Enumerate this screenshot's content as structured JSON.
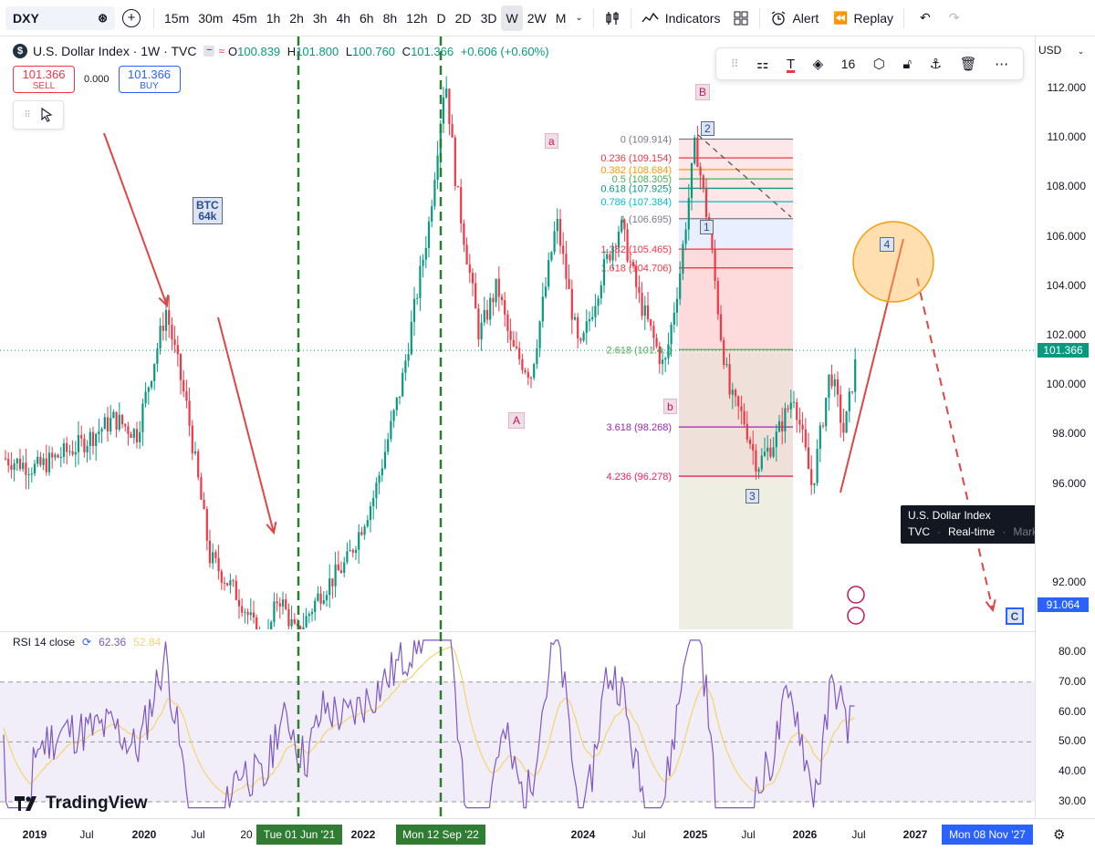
{
  "toolbar": {
    "symbol": "DXY",
    "intervals": [
      "15m",
      "30m",
      "45m",
      "1h",
      "2h",
      "3h",
      "4h",
      "6h",
      "8h",
      "12h",
      "D",
      "2D",
      "3D",
      "W",
      "2W",
      "M"
    ],
    "active_interval": "W",
    "indicators_label": "Indicators",
    "alert_label": "Alert",
    "replay_label": "Replay"
  },
  "legend": {
    "title": "U.S. Dollar Index · 1W · TVC",
    "o": "100.839",
    "h": "101.800",
    "l": "100.760",
    "c": "101.366",
    "chg": "+0.606 (+0.60%)"
  },
  "trade": {
    "sell_price": "101.366",
    "sell_label": "SELL",
    "spread": "0.000",
    "buy_price": "101.366",
    "buy_label": "BUY"
  },
  "draw_toolbar": {
    "font_size": "16"
  },
  "price_scale": {
    "currency": "USD",
    "labels": [
      "112.000",
      "110.000",
      "108.000",
      "106.000",
      "104.000",
      "102.000",
      "100.000",
      "98.000",
      "96.000",
      "92.000"
    ],
    "current": "101.366",
    "target": "91.064",
    "rsi_labels": [
      "80.00",
      "70.00",
      "60.00",
      "50.00",
      "40.00",
      "30.00"
    ]
  },
  "time_axis": {
    "labels": [
      "2019",
      "Jul",
      "2020",
      "Jul",
      "20",
      "2022",
      "Jul",
      "2024",
      "Jul",
      "2025",
      "Jul",
      "2026",
      "Jul",
      "2027"
    ],
    "tag1": "Tue 01 Jun '21",
    "tag2": "Mon 12 Sep '22",
    "tag3": "Mon 08 Nov '27"
  },
  "annotations": {
    "btc": "BTC\n64k",
    "wave_a_small": "a",
    "wave_B": "B",
    "wave_A": "A",
    "wave_b_small": "b",
    "wave_1": "1",
    "wave_2": "2",
    "wave_3": "3",
    "wave_4": "4",
    "wave_C": "C"
  },
  "fib": [
    {
      "label": "0 (109.914)",
      "value": 109.914,
      "color": "#787b86"
    },
    {
      "label": "0.236 (109.154)",
      "value": 109.154,
      "color": "#f23645"
    },
    {
      "label": "0.382 (108.684)",
      "value": 108.684,
      "color": "#ff9800"
    },
    {
      "label": "0.5 (108.305)",
      "value": 108.305,
      "color": "#4caf50"
    },
    {
      "label": "0.618 (107.925)",
      "value": 107.925,
      "color": "#089981"
    },
    {
      "label": "0.786 (107.384)",
      "value": 107.384,
      "color": "#00bcd4"
    },
    {
      "label": "1 (106.695)",
      "value": 106.695,
      "color": "#787b86"
    },
    {
      "label": "1.382 (105.465)",
      "value": 105.465,
      "color": "#f23645"
    },
    {
      "label": "1.618 (104.706)",
      "value": 104.706,
      "color": "#f23645"
    },
    {
      "label": "2.618 (101.4..)",
      "value": 101.4,
      "color": "#4caf50"
    },
    {
      "label": "3.618 (98.268)",
      "value": 98.268,
      "color": "#9c27b0"
    },
    {
      "label": "4.236 (96.278)",
      "value": 96.278,
      "color": "#e91e63"
    }
  ],
  "tooltip": {
    "title": "U.S. Dollar Index",
    "exchange": "TVC",
    "rt": "Real-time",
    "status": "Market closed"
  },
  "rsi": {
    "label": "RSI 14 close",
    "v1": "62.36",
    "v2": "52.84"
  },
  "brand": "TradingView",
  "colors": {
    "up": "#089981",
    "down": "#f23645",
    "rsi_line": "#7e57c2",
    "rsi_ma": "#f5d36c",
    "accent": "#2962ff",
    "vline": "#2e7d32"
  }
}
